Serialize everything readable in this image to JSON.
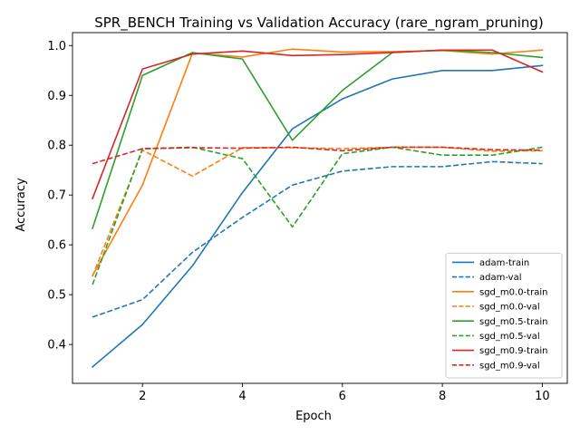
{
  "chart_data": {
    "type": "line",
    "title": "SPR_BENCH Training vs Validation Accuracy (rare_ngram_pruning)",
    "xlabel": "Epoch",
    "ylabel": "Accuracy",
    "xlim": [
      0.6,
      10.5
    ],
    "ylim": [
      0.322,
      1.026
    ],
    "xticks": [
      2,
      4,
      6,
      8,
      10
    ],
    "yticks": [
      0.4,
      0.5,
      0.6,
      0.7,
      0.8,
      0.9,
      1.0
    ],
    "ytick_labels": [
      "0.4",
      "0.5",
      "0.6",
      "0.7",
      "0.8",
      "0.9",
      "1.0"
    ],
    "grid": false,
    "legend_position": "lower-right",
    "x": [
      1,
      2,
      3,
      4,
      5,
      6,
      7,
      8,
      9,
      10
    ],
    "series": [
      {
        "name": "adam-train",
        "color": "#1f77b4",
        "dash": "solid",
        "values": [
          0.355,
          0.44,
          0.558,
          0.705,
          0.833,
          0.893,
          0.933,
          0.95,
          0.95,
          0.96
        ]
      },
      {
        "name": "adam-val",
        "color": "#1f77b4",
        "dash": "dashed",
        "values": [
          0.455,
          0.49,
          0.585,
          0.655,
          0.72,
          0.748,
          0.757,
          0.757,
          0.767,
          0.763
        ]
      },
      {
        "name": "sgd_m0.0-train",
        "color": "#ff7f0e",
        "dash": "solid",
        "values": [
          0.538,
          0.72,
          0.985,
          0.977,
          0.993,
          0.987,
          0.988,
          0.99,
          0.983,
          0.991
        ]
      },
      {
        "name": "sgd_m0.0-val",
        "color": "#ff7f0e",
        "dash": "dashed",
        "values": [
          0.537,
          0.79,
          0.738,
          0.795,
          0.795,
          0.793,
          0.796,
          0.796,
          0.788,
          0.789
        ]
      },
      {
        "name": "sgd_m0.5-train",
        "color": "#2ca02c",
        "dash": "solid",
        "values": [
          0.633,
          0.94,
          0.986,
          0.973,
          0.81,
          0.91,
          0.986,
          0.991,
          0.986,
          0.976
        ]
      },
      {
        "name": "sgd_m0.5-val",
        "color": "#2ca02c",
        "dash": "dashed",
        "values": [
          0.52,
          0.793,
          0.796,
          0.773,
          0.636,
          0.783,
          0.796,
          0.78,
          0.78,
          0.796
        ]
      },
      {
        "name": "sgd_m0.9-train",
        "color": "#d62728",
        "dash": "solid",
        "values": [
          0.693,
          0.953,
          0.983,
          0.989,
          0.98,
          0.982,
          0.986,
          0.991,
          0.991,
          0.947
        ]
      },
      {
        "name": "sgd_m0.9-val",
        "color": "#d62728",
        "dash": "dashed",
        "values": [
          0.763,
          0.793,
          0.795,
          0.794,
          0.796,
          0.789,
          0.796,
          0.796,
          0.791,
          0.79
        ]
      }
    ]
  }
}
